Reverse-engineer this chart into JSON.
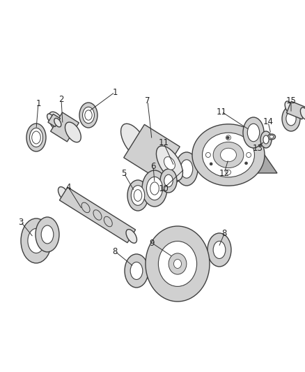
{
  "background_color": "#ffffff",
  "line_color": "#404040",
  "fill_color": "#d0d0d0",
  "fill_light": "#e8e8e8",
  "fill_dark": "#a8a8a8",
  "label_color": "#222222",
  "label_fontsize": 8.5,
  "fig_width": 4.38,
  "fig_height": 5.33,
  "dpi": 100
}
